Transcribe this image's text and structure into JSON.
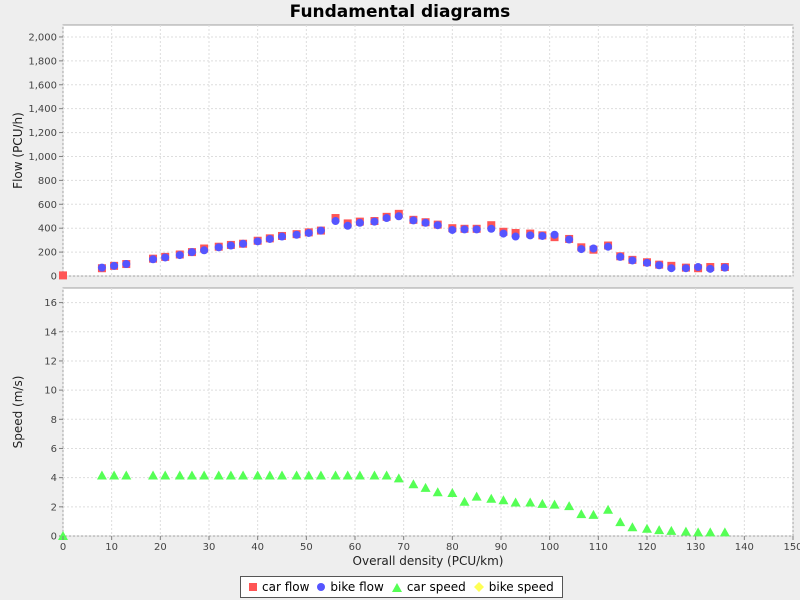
{
  "chart_data": {
    "type": "scatter",
    "title": "Fundamental diagrams",
    "xlabel": "Overall density (PCU/km)",
    "xlim": [
      0,
      150
    ],
    "xticks": [
      "0",
      "10",
      "20",
      "30",
      "40",
      "50",
      "60",
      "70",
      "80",
      "90",
      "100",
      "110",
      "120",
      "130",
      "140",
      "150"
    ],
    "grid": true,
    "legend_position": "bottom",
    "panels": [
      {
        "ylabel": "Flow (PCU/h)",
        "ylim": [
          0,
          2100
        ],
        "yticks": [
          "0",
          "200",
          "400",
          "600",
          "800",
          "1,000",
          "1,200",
          "1,400",
          "1,600",
          "1,800",
          "2,000"
        ],
        "series": [
          {
            "name": "car flow",
            "color": "#ff5555",
            "marker": "square",
            "points": [
              [
                0,
                5
              ],
              [
                8,
                65
              ],
              [
                10.5,
                85
              ],
              [
                13,
                100
              ],
              [
                18.5,
                145
              ],
              [
                21,
                160
              ],
              [
                24,
                180
              ],
              [
                26.5,
                200
              ],
              [
                29,
                230
              ],
              [
                32,
                245
              ],
              [
                34.5,
                260
              ],
              [
                37,
                270
              ],
              [
                40,
                295
              ],
              [
                42.5,
                315
              ],
              [
                45,
                335
              ],
              [
                48,
                350
              ],
              [
                50.5,
                365
              ],
              [
                53,
                380
              ],
              [
                56,
                485
              ],
              [
                58.5,
                440
              ],
              [
                61,
                455
              ],
              [
                64,
                460
              ],
              [
                66.5,
                495
              ],
              [
                69,
                520
              ],
              [
                72,
                470
              ],
              [
                74.5,
                450
              ],
              [
                77,
                430
              ],
              [
                80,
                400
              ],
              [
                82.5,
                395
              ],
              [
                85,
                395
              ],
              [
                88,
                425
              ],
              [
                90.5,
                370
              ],
              [
                93,
                360
              ],
              [
                96,
                355
              ],
              [
                98.5,
                340
              ],
              [
                101,
                325
              ],
              [
                104,
                310
              ],
              [
                106.5,
                240
              ],
              [
                109,
                220
              ],
              [
                112,
                255
              ],
              [
                114.5,
                165
              ],
              [
                117,
                135
              ],
              [
                120,
                115
              ],
              [
                122.5,
                95
              ],
              [
                125,
                85
              ],
              [
                128,
                70
              ],
              [
                130.5,
                65
              ],
              [
                133,
                75
              ],
              [
                136,
                75
              ]
            ]
          },
          {
            "name": "bike flow",
            "color": "#5555ff",
            "marker": "circle",
            "points": [
              [
                8,
                70
              ],
              [
                10.5,
                85
              ],
              [
                13,
                100
              ],
              [
                18.5,
                140
              ],
              [
                21,
                155
              ],
              [
                24,
                175
              ],
              [
                26.5,
                200
              ],
              [
                29,
                215
              ],
              [
                32,
                240
              ],
              [
                34.5,
                255
              ],
              [
                37,
                270
              ],
              [
                40,
                290
              ],
              [
                42.5,
                310
              ],
              [
                45,
                330
              ],
              [
                48,
                345
              ],
              [
                50.5,
                360
              ],
              [
                53,
                380
              ],
              [
                56,
                460
              ],
              [
                58.5,
                420
              ],
              [
                61,
                445
              ],
              [
                64,
                455
              ],
              [
                66.5,
                485
              ],
              [
                69,
                500
              ],
              [
                72,
                465
              ],
              [
                74.5,
                445
              ],
              [
                77,
                425
              ],
              [
                80,
                385
              ],
              [
                82.5,
                390
              ],
              [
                85,
                390
              ],
              [
                88,
                395
              ],
              [
                90.5,
                355
              ],
              [
                93,
                330
              ],
              [
                96,
                340
              ],
              [
                98.5,
                335
              ],
              [
                101,
                345
              ],
              [
                104,
                305
              ],
              [
                106.5,
                225
              ],
              [
                109,
                230
              ],
              [
                112,
                245
              ],
              [
                114.5,
                160
              ],
              [
                117,
                130
              ],
              [
                120,
                110
              ],
              [
                122.5,
                90
              ],
              [
                125,
                65
              ],
              [
                128,
                65
              ],
              [
                130.5,
                75
              ],
              [
                133,
                60
              ],
              [
                136,
                70
              ]
            ]
          }
        ]
      },
      {
        "ylabel": "Speed (m/s)",
        "ylim": [
          0,
          17
        ],
        "yticks": [
          "0",
          "2",
          "4",
          "6",
          "8",
          "10",
          "12",
          "14",
          "16"
        ],
        "series": [
          {
            "name": "car speed",
            "color": "#55ff55",
            "marker": "triangle",
            "points": [
              [
                0,
                0
              ],
              [
                8,
                4.15
              ],
              [
                10.5,
                4.15
              ],
              [
                13,
                4.15
              ],
              [
                18.5,
                4.15
              ],
              [
                21,
                4.15
              ],
              [
                24,
                4.15
              ],
              [
                26.5,
                4.15
              ],
              [
                29,
                4.15
              ],
              [
                32,
                4.15
              ],
              [
                34.5,
                4.15
              ],
              [
                37,
                4.15
              ],
              [
                40,
                4.15
              ],
              [
                42.5,
                4.15
              ],
              [
                45,
                4.15
              ],
              [
                48,
                4.15
              ],
              [
                50.5,
                4.15
              ],
              [
                53,
                4.15
              ],
              [
                56,
                4.15
              ],
              [
                58.5,
                4.15
              ],
              [
                61,
                4.15
              ],
              [
                64,
                4.15
              ],
              [
                66.5,
                4.15
              ],
              [
                69,
                3.95
              ],
              [
                72,
                3.55
              ],
              [
                74.5,
                3.3
              ],
              [
                77,
                3.0
              ],
              [
                80,
                2.95
              ],
              [
                82.5,
                2.35
              ],
              [
                85,
                2.7
              ],
              [
                88,
                2.55
              ],
              [
                90.5,
                2.45
              ],
              [
                93,
                2.3
              ],
              [
                96,
                2.3
              ],
              [
                98.5,
                2.2
              ],
              [
                101,
                2.15
              ],
              [
                104,
                2.05
              ],
              [
                106.5,
                1.5
              ],
              [
                109,
                1.45
              ],
              [
                112,
                1.8
              ],
              [
                114.5,
                0.95
              ],
              [
                117,
                0.6
              ],
              [
                120,
                0.5
              ],
              [
                122.5,
                0.4
              ],
              [
                125,
                0.35
              ],
              [
                128,
                0.3
              ],
              [
                130.5,
                0.25
              ],
              [
                133,
                0.25
              ],
              [
                136,
                0.25
              ]
            ]
          },
          {
            "name": "bike speed",
            "color": "#ffff55",
            "marker": "diamond",
            "points": []
          }
        ]
      }
    ]
  }
}
